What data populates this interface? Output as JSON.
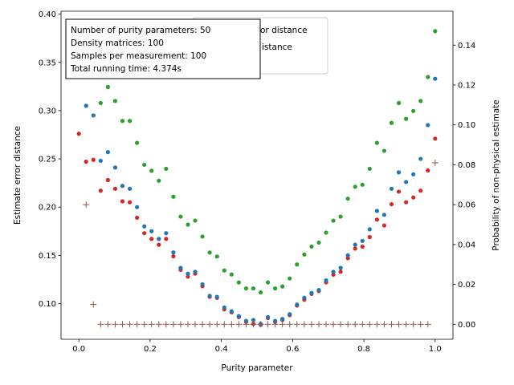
{
  "chart_data": {
    "type": "scatter",
    "xlabel": "Purity parameter",
    "ylabel": "Estimate error distance",
    "ylabel_right": "Probability of non-physical estimate",
    "xlim": [
      -0.05,
      1.05
    ],
    "ylim": [
      0.063,
      0.403
    ],
    "ylim_right": [
      -0.0075,
      0.157
    ],
    "xticks": [
      "0.0",
      "0.2",
      "0.4",
      "0.6",
      "0.8",
      "1.0"
    ],
    "xtick_values": [
      0.0,
      0.2,
      0.4,
      0.6,
      0.8,
      1.0
    ],
    "yticks": [
      "0.10",
      "0.15",
      "0.20",
      "0.25",
      "0.30",
      "0.35",
      "0.40"
    ],
    "ytick_values": [
      0.1,
      0.15,
      0.2,
      0.25,
      0.3,
      0.35,
      0.4
    ],
    "yticks_right": [
      "0.00",
      "0.02",
      "0.04",
      "0.06",
      "0.08",
      "0.10",
      "0.12",
      "0.14"
    ],
    "ytick_right_values": [
      0.0,
      0.02,
      0.04,
      0.06,
      0.08,
      0.1,
      0.12,
      0.14
    ],
    "legend_position": "top-center",
    "legend_entries_visible": [
      "or distance",
      "istance"
    ],
    "info_box": {
      "lines": [
        "Number of purity parameters: 50",
        "Density matrices: 100",
        "Samples per measurement: 100",
        "Total running time:  4.374s"
      ]
    },
    "x": [
      0.0,
      0.0204,
      0.0408,
      0.0612,
      0.0816,
      0.102,
      0.1224,
      0.1429,
      0.1633,
      0.1837,
      0.2041,
      0.2245,
      0.2449,
      0.2653,
      0.2857,
      0.3061,
      0.3265,
      0.3469,
      0.3673,
      0.3878,
      0.4082,
      0.4286,
      0.449,
      0.4694,
      0.4898,
      0.5102,
      0.5306,
      0.551,
      0.5714,
      0.5918,
      0.6122,
      0.6327,
      0.6531,
      0.6735,
      0.6939,
      0.7143,
      0.7347,
      0.7551,
      0.7755,
      0.7959,
      0.8163,
      0.8367,
      0.8571,
      0.8776,
      0.898,
      0.9184,
      0.9388,
      0.9592,
      0.9796,
      1.0
    ],
    "series": [
      {
        "axis": "left",
        "color": "#d62728",
        "marker": "dot",
        "values": [
          0.276,
          0.247,
          0.249,
          0.217,
          0.228,
          0.219,
          0.206,
          0.205,
          0.189,
          0.173,
          0.167,
          0.161,
          0.167,
          0.149,
          0.135,
          0.128,
          0.131,
          0.118,
          0.107,
          0.106,
          0.094,
          0.091,
          0.086,
          0.081,
          0.079,
          0.078,
          0.085,
          0.081,
          0.083,
          0.088,
          0.098,
          0.104,
          0.11,
          0.113,
          0.122,
          0.13,
          0.133,
          0.147,
          0.157,
          0.159,
          0.169,
          0.187,
          0.181,
          0.203,
          0.216,
          0.205,
          0.21,
          0.217,
          0.238,
          0.271
        ]
      },
      {
        "axis": "left",
        "color": "#1f77b4",
        "marker": "dot",
        "values": [
          null,
          0.305,
          0.295,
          0.248,
          0.257,
          0.241,
          0.222,
          0.219,
          0.2,
          0.18,
          0.175,
          0.167,
          0.173,
          0.153,
          0.137,
          0.131,
          0.133,
          0.12,
          0.108,
          0.107,
          0.096,
          0.092,
          0.087,
          0.082,
          0.083,
          0.079,
          0.086,
          0.082,
          0.084,
          0.089,
          0.099,
          0.106,
          0.111,
          0.114,
          0.124,
          0.133,
          0.137,
          0.15,
          0.161,
          0.165,
          0.177,
          0.196,
          0.192,
          0.219,
          0.236,
          0.226,
          0.234,
          0.25,
          0.285,
          0.333
        ]
      },
      {
        "axis": "right",
        "color": "#2ca02c",
        "marker": "dot",
        "values": [
          null,
          null,
          null,
          0.111,
          0.119,
          0.112,
          0.102,
          0.102,
          0.091,
          0.08,
          0.077,
          0.072,
          0.078,
          0.064,
          0.054,
          0.05,
          0.052,
          0.044,
          0.036,
          0.034,
          0.027,
          0.025,
          0.021,
          0.018,
          0.018,
          0.016,
          0.021,
          0.018,
          0.019,
          0.023,
          0.03,
          0.035,
          0.039,
          0.041,
          0.046,
          0.052,
          0.054,
          0.063,
          0.069,
          0.07,
          0.078,
          0.091,
          0.087,
          0.101,
          0.111,
          0.103,
          0.107,
          0.112,
          0.124,
          0.147
        ]
      },
      {
        "axis": "right",
        "color": "#8c564b",
        "marker": "plus",
        "values": [
          null,
          0.06,
          0.01,
          0.0,
          0.0,
          0.0,
          0.0,
          0.0,
          0.0,
          0.0,
          0.0,
          0.0,
          0.0,
          0.0,
          0.0,
          0.0,
          0.0,
          0.0,
          0.0,
          0.0,
          0.0,
          0.0,
          0.0,
          0.0,
          0.0,
          0.0,
          0.0,
          0.0,
          0.0,
          0.0,
          0.0,
          0.0,
          0.0,
          0.0,
          0.0,
          0.0,
          0.0,
          0.0,
          0.0,
          0.0,
          0.0,
          0.0,
          0.0,
          0.0,
          0.0,
          0.0,
          0.0,
          0.0,
          0.0,
          0.081
        ]
      }
    ]
  }
}
